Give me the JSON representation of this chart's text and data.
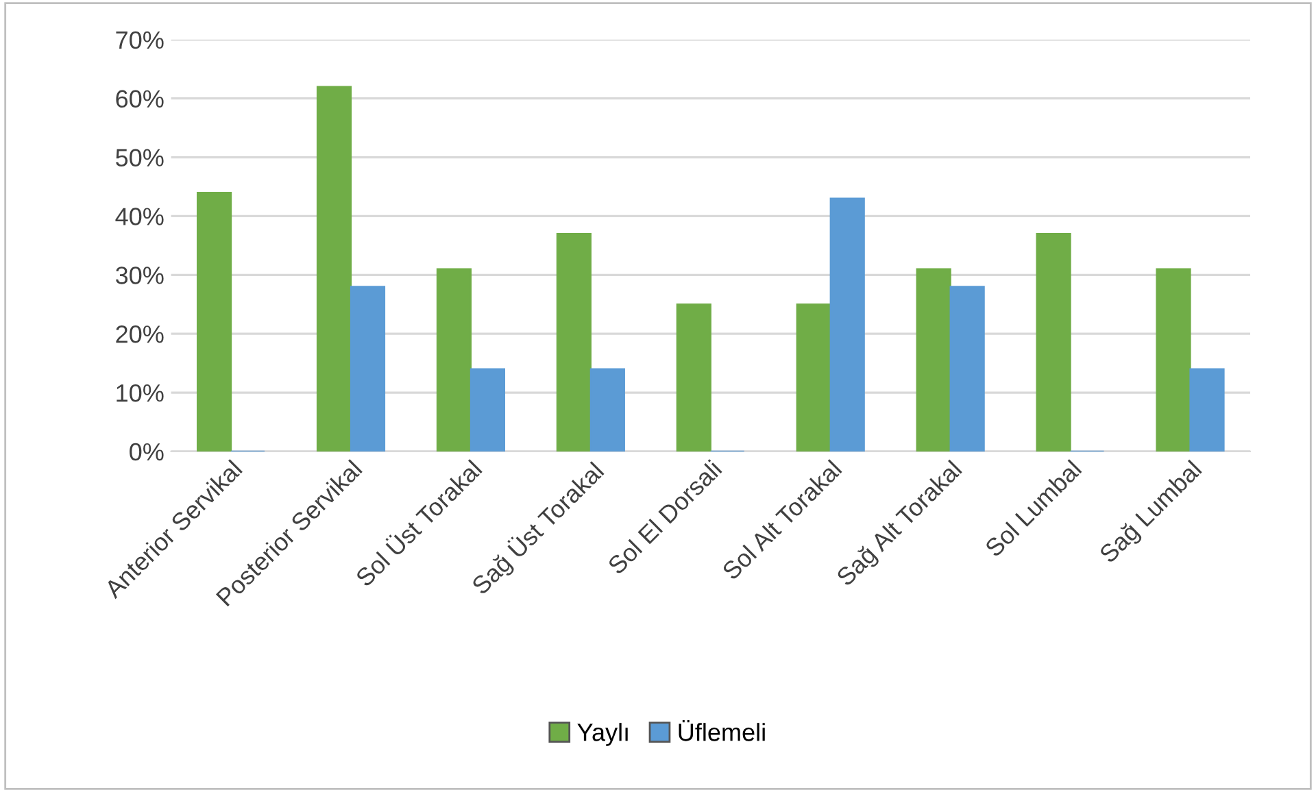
{
  "chart_data": {
    "type": "bar",
    "categories": [
      "Anterior Servikal",
      "Posterior Servikal",
      "Sol Üst Torakal",
      "Sağ Üst Torakal",
      "Sol El Dorsali",
      "Sol Alt Torakal",
      "Sağ Alt Torakal",
      "Sol Lumbal",
      "Sağ Lumbal"
    ],
    "series": [
      {
        "name": "Yaylı",
        "color": "#70ad47",
        "values": [
          44,
          62,
          31,
          37,
          25,
          25,
          31,
          37,
          31
        ]
      },
      {
        "name": "Üflemeli",
        "color": "#5b9bd5",
        "values": [
          0,
          28,
          14,
          14,
          0,
          43,
          28,
          0,
          14
        ]
      }
    ],
    "ylim": [
      0,
      70
    ],
    "yticks": [
      {
        "value": 0,
        "label": "0%"
      },
      {
        "value": 10,
        "label": "10%"
      },
      {
        "value": 20,
        "label": "20%"
      },
      {
        "value": 30,
        "label": "30%"
      },
      {
        "value": 40,
        "label": "40%"
      },
      {
        "value": 50,
        "label": "50%"
      },
      {
        "value": 60,
        "label": "60%"
      },
      {
        "value": 70,
        "label": "70%"
      }
    ],
    "grid": "y",
    "legend": "bottom"
  }
}
